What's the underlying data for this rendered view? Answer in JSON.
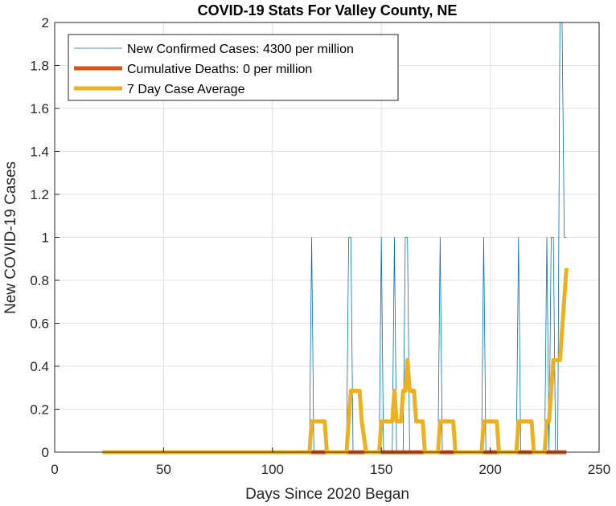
{
  "chart_data": {
    "type": "line",
    "title": "COVID-19 Stats For Valley County, NE",
    "xlabel": "Days Since 2020 Began",
    "ylabel": "New COVID-19 Cases",
    "xlim": [
      0,
      250
    ],
    "ylim": [
      0,
      2
    ],
    "xticks": [
      0,
      50,
      100,
      150,
      200,
      250
    ],
    "yticks": [
      0,
      0.2,
      0.4,
      0.6,
      0.8,
      1,
      1.2,
      1.4,
      1.6,
      1.8,
      2
    ],
    "grid": true,
    "legend_position": "top-left",
    "series": [
      {
        "name": "New Confirmed Cases: 4300 per million",
        "color": "#0072BD",
        "width": 0.8,
        "x": [
          22,
          117,
          118,
          119,
          134,
          135,
          136,
          137,
          149,
          150,
          151,
          155,
          156,
          157,
          160,
          161,
          162,
          163,
          176,
          177,
          178,
          196,
          197,
          198,
          212,
          213,
          214,
          225,
          226,
          227,
          228,
          229,
          230,
          231,
          232,
          233,
          234,
          235
        ],
        "y": [
          0,
          0,
          1,
          0,
          0,
          1,
          1,
          0,
          0,
          1,
          0,
          0,
          1,
          0,
          0,
          1,
          1,
          0,
          0,
          1,
          0,
          0,
          1,
          0,
          0,
          1,
          0,
          0,
          1,
          0,
          1,
          1,
          0,
          0,
          2,
          2,
          1,
          1
        ]
      },
      {
        "name": "Cumulative Deaths: 0 per million",
        "color": "#D95319",
        "width": 5,
        "x": [
          22,
          235
        ],
        "y": [
          0,
          0
        ]
      },
      {
        "name": "7 Day Case Average",
        "color": "#EDB120",
        "width": 5,
        "x": [
          22,
          117,
          118,
          124,
          125,
          134,
          135,
          136,
          140,
          141,
          143,
          149,
          150,
          154,
          155,
          156,
          157,
          158,
          159,
          160,
          161,
          162,
          163,
          164,
          165,
          166,
          167,
          169,
          170,
          176,
          177,
          183,
          184,
          196,
          197,
          203,
          204,
          212,
          213,
          219,
          220,
          225,
          226,
          227,
          228,
          229,
          230,
          231,
          232,
          233,
          234,
          235
        ],
        "y": [
          0,
          0,
          0.143,
          0.143,
          0,
          0,
          0.143,
          0.286,
          0.286,
          0.143,
          0,
          0,
          0.143,
          0.143,
          0.143,
          0.286,
          0.143,
          0.143,
          0.143,
          0.286,
          0.286,
          0.429,
          0.286,
          0.286,
          0.286,
          0.143,
          0.143,
          0.143,
          0,
          0,
          0.143,
          0.143,
          0,
          0,
          0.143,
          0.143,
          0,
          0,
          0.143,
          0.143,
          0,
          0,
          0.143,
          0.143,
          0.286,
          0.429,
          0.429,
          0.429,
          0.429,
          0.571,
          0.714,
          0.857
        ]
      }
    ]
  }
}
